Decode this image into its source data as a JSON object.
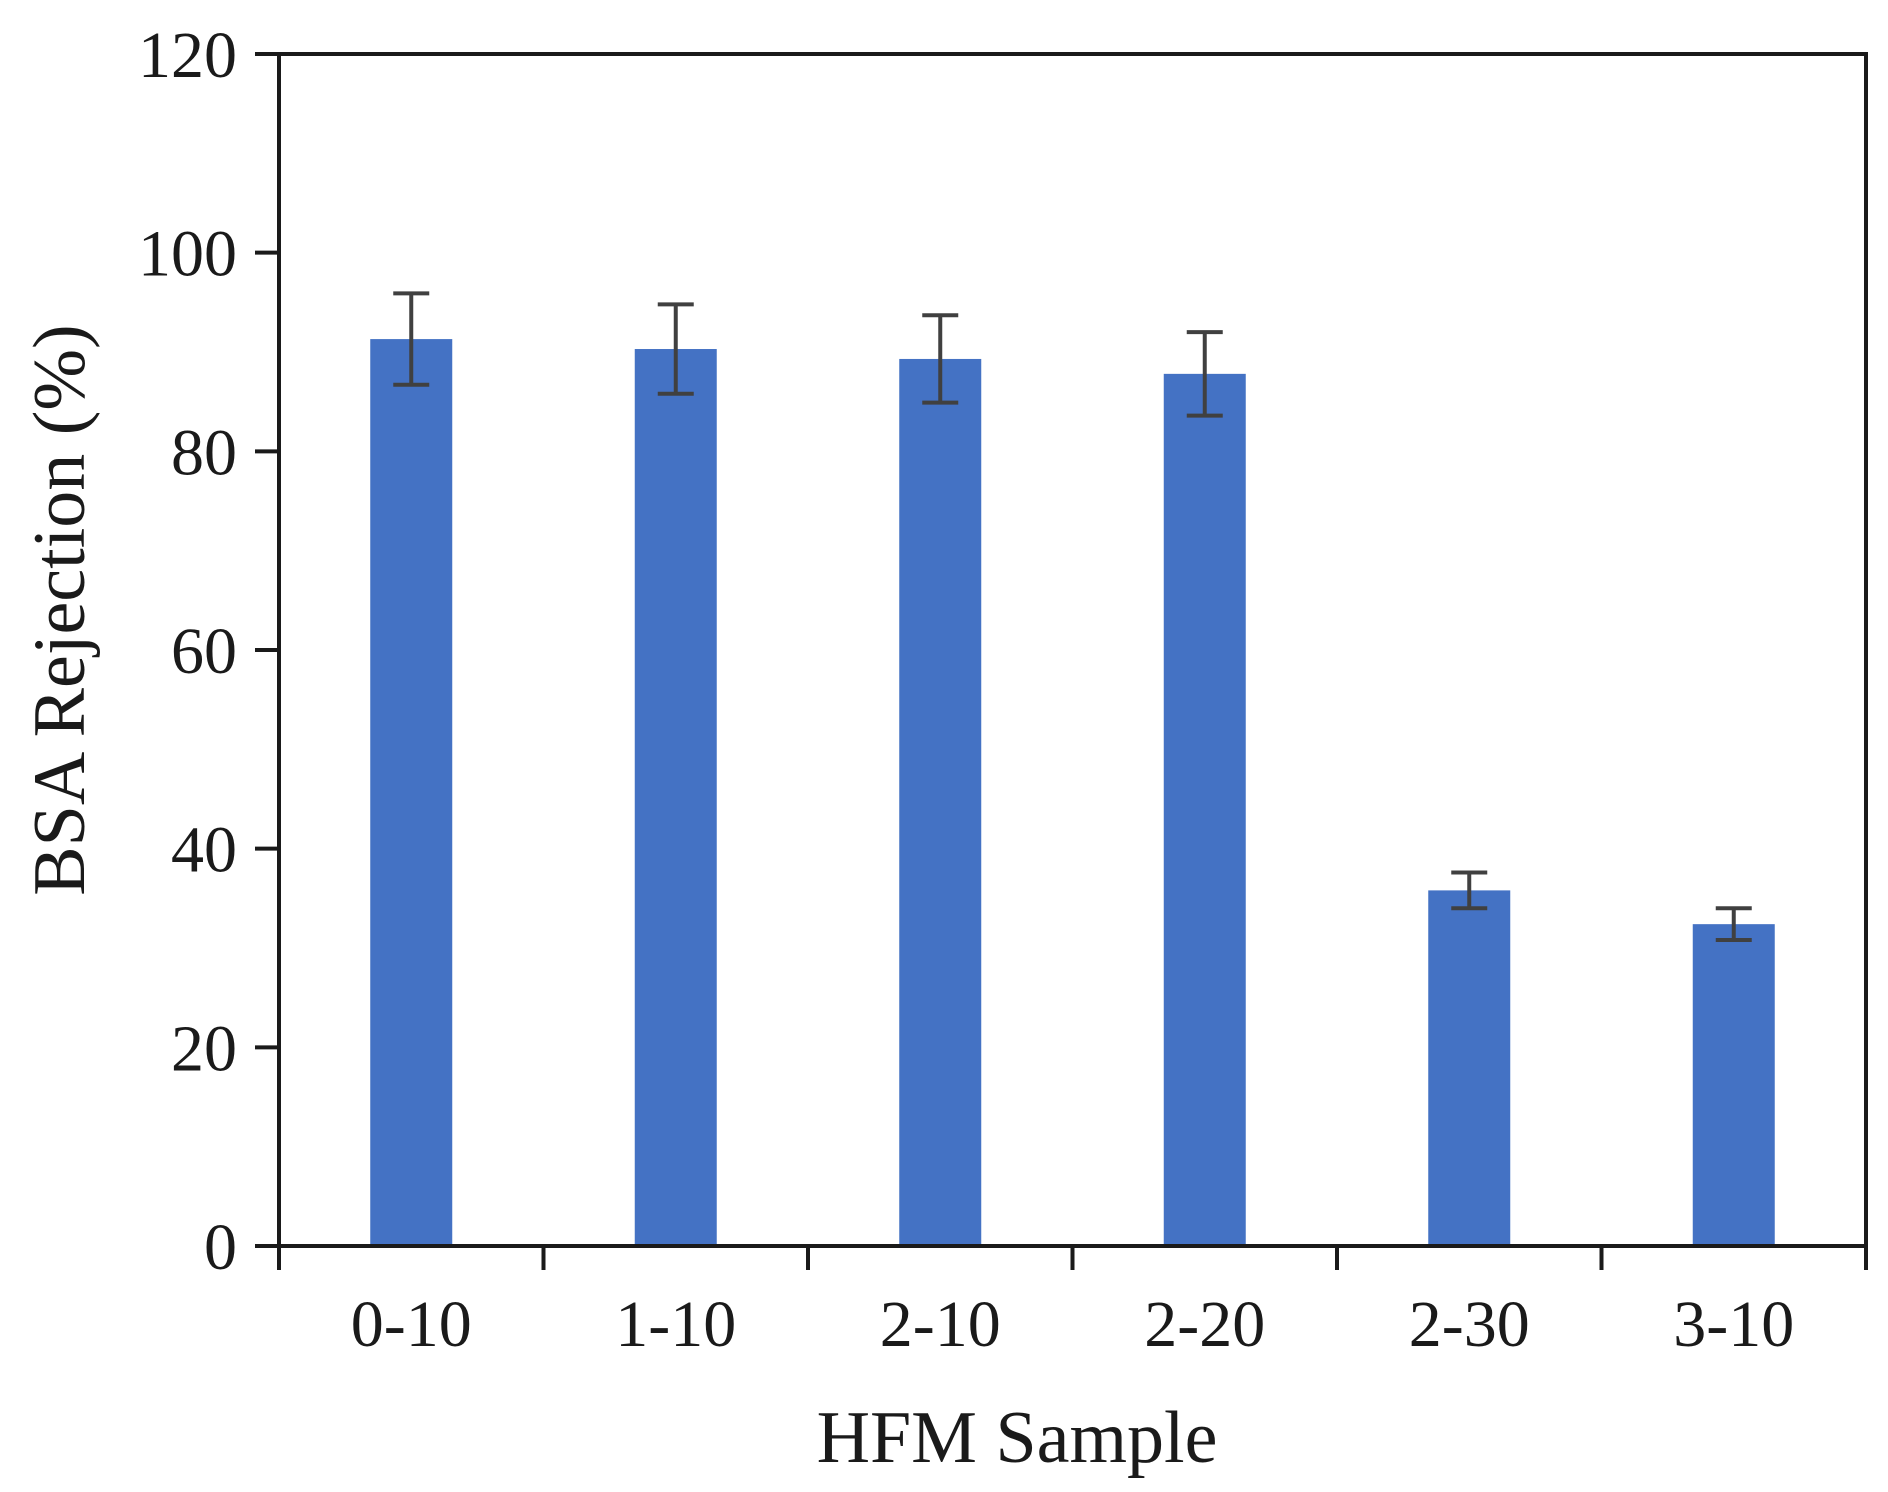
{
  "chart_data": {
    "type": "bar",
    "categories": [
      "0-10",
      "1-10",
      "2-10",
      "2-20",
      "2-30",
      "3-10"
    ],
    "values": [
      91.3,
      90.3,
      89.3,
      87.8,
      35.8,
      32.4
    ],
    "errors": [
      4.6,
      4.5,
      4.4,
      4.2,
      1.8,
      1.6
    ],
    "title": "",
    "xlabel": "HFM Sample",
    "ylabel": "BSA Rejection (%)",
    "ylim": [
      0,
      120
    ],
    "yticks": [
      0,
      20,
      40,
      60,
      80,
      100,
      120
    ],
    "grid": false,
    "colors": {
      "bar": "#4472C4",
      "error_bar": "#404040",
      "axis": "#1a1a1a"
    }
  }
}
